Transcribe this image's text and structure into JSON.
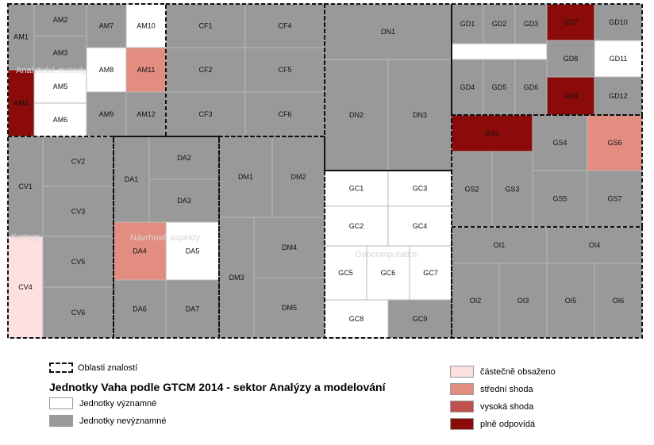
{
  "legend": {
    "areas": "Oblasti znalostí",
    "title": "Jednotky Vaha podle GTCM 2014 - sektor Analýzy a modelování",
    "significant": "Jednotky významné",
    "insignificant": "Jednotky nevýznamné",
    "partial": "částečně obsaženo",
    "medium": "střední shoda",
    "high": "vysoká shoda",
    "full": "plně odpovídá"
  },
  "colors": {
    "significant": "#ffffff",
    "insignificant": "#999999",
    "partial": "#fde0e0",
    "medium": "#e38c80",
    "high": "#c0504d",
    "full": "#8b0b0b"
  },
  "areas": [
    {
      "id": "AM",
      "label": "Analytické metody"
    },
    {
      "id": "CF",
      "label": ""
    },
    {
      "id": "DN",
      "label": ""
    },
    {
      "id": "GD",
      "label": ""
    },
    {
      "id": "GS",
      "label": ""
    },
    {
      "id": "CV",
      "label": "Kartogr"
    },
    {
      "id": "DA",
      "label": "Návrhové aspekty"
    },
    {
      "id": "DM",
      "label": ""
    },
    {
      "id": "GC",
      "label": "Geocomputation"
    },
    {
      "id": "OI",
      "label": ""
    }
  ],
  "units": [
    {
      "label": "AM1",
      "status": "insignificant"
    },
    {
      "label": "AM2",
      "status": "insignificant"
    },
    {
      "label": "AM3",
      "status": "insignificant"
    },
    {
      "label": "AM4",
      "status": "full"
    },
    {
      "label": "AM5",
      "status": "significant"
    },
    {
      "label": "AM6",
      "status": "significant"
    },
    {
      "label": "AM7",
      "status": "insignificant"
    },
    {
      "label": "AM8",
      "status": "significant"
    },
    {
      "label": "AM9",
      "status": "insignificant"
    },
    {
      "label": "AM10",
      "status": "significant"
    },
    {
      "label": "AM11",
      "status": "medium"
    },
    {
      "label": "AM12",
      "status": "insignificant"
    },
    {
      "label": "CF1",
      "status": "insignificant"
    },
    {
      "label": "CF2",
      "status": "insignificant"
    },
    {
      "label": "CF3",
      "status": "insignificant"
    },
    {
      "label": "CF4",
      "status": "insignificant"
    },
    {
      "label": "CF5",
      "status": "insignificant"
    },
    {
      "label": "CF6",
      "status": "insignificant"
    },
    {
      "label": "DN1",
      "status": "insignificant"
    },
    {
      "label": "DN2",
      "status": "insignificant"
    },
    {
      "label": "DN3",
      "status": "insignificant"
    },
    {
      "label": "GD1",
      "status": "insignificant"
    },
    {
      "label": "GD2",
      "status": "insignificant"
    },
    {
      "label": "GD3",
      "status": "insignificant"
    },
    {
      "label": "GD4",
      "status": "insignificant"
    },
    {
      "label": "GD5",
      "status": "insignificant"
    },
    {
      "label": "GD6",
      "status": "insignificant"
    },
    {
      "label": "GD7",
      "status": "full"
    },
    {
      "label": "GD8",
      "status": "insignificant"
    },
    {
      "label": "GD9",
      "status": "full"
    },
    {
      "label": "GD10",
      "status": "insignificant"
    },
    {
      "label": "GD11",
      "status": "significant"
    },
    {
      "label": "GD12",
      "status": "insignificant"
    },
    {
      "label": "GS1",
      "status": "full"
    },
    {
      "label": "GS2",
      "status": "insignificant"
    },
    {
      "label": "GS3",
      "status": "insignificant"
    },
    {
      "label": "GS4",
      "status": "insignificant"
    },
    {
      "label": "GS5",
      "status": "insignificant"
    },
    {
      "label": "GS6",
      "status": "medium"
    },
    {
      "label": "GS7",
      "status": "insignificant"
    },
    {
      "label": "CV1",
      "status": "insignificant"
    },
    {
      "label": "CV2",
      "status": "insignificant"
    },
    {
      "label": "CV3",
      "status": "insignificant"
    },
    {
      "label": "CV4",
      "status": "partial"
    },
    {
      "label": "CV5",
      "status": "insignificant"
    },
    {
      "label": "CV6",
      "status": "insignificant"
    },
    {
      "label": "DA1",
      "status": "insignificant"
    },
    {
      "label": "DA2",
      "status": "insignificant"
    },
    {
      "label": "DA3",
      "status": "insignificant"
    },
    {
      "label": "DA4",
      "status": "medium"
    },
    {
      "label": "DA5",
      "status": "significant"
    },
    {
      "label": "DA6",
      "status": "insignificant"
    },
    {
      "label": "DA7",
      "status": "insignificant"
    },
    {
      "label": "DM1",
      "status": "insignificant"
    },
    {
      "label": "DM2",
      "status": "insignificant"
    },
    {
      "label": "DM3",
      "status": "insignificant"
    },
    {
      "label": "DM4",
      "status": "insignificant"
    },
    {
      "label": "DM5",
      "status": "insignificant"
    },
    {
      "label": "GC1",
      "status": "significant"
    },
    {
      "label": "GC2",
      "status": "significant"
    },
    {
      "label": "GC3",
      "status": "significant"
    },
    {
      "label": "GC4",
      "status": "significant"
    },
    {
      "label": "GC5",
      "status": "significant"
    },
    {
      "label": "GC6",
      "status": "significant"
    },
    {
      "label": "GC7",
      "status": "significant"
    },
    {
      "label": "GC8",
      "status": "significant"
    },
    {
      "label": "GC9",
      "status": "insignificant"
    },
    {
      "label": "OI1",
      "status": "insignificant"
    },
    {
      "label": "OI2",
      "status": "insignificant"
    },
    {
      "label": "OI3",
      "status": "insignificant"
    },
    {
      "label": "OI4",
      "status": "insignificant"
    },
    {
      "label": "OI5",
      "status": "insignificant"
    },
    {
      "label": "OI6",
      "status": "insignificant"
    }
  ]
}
